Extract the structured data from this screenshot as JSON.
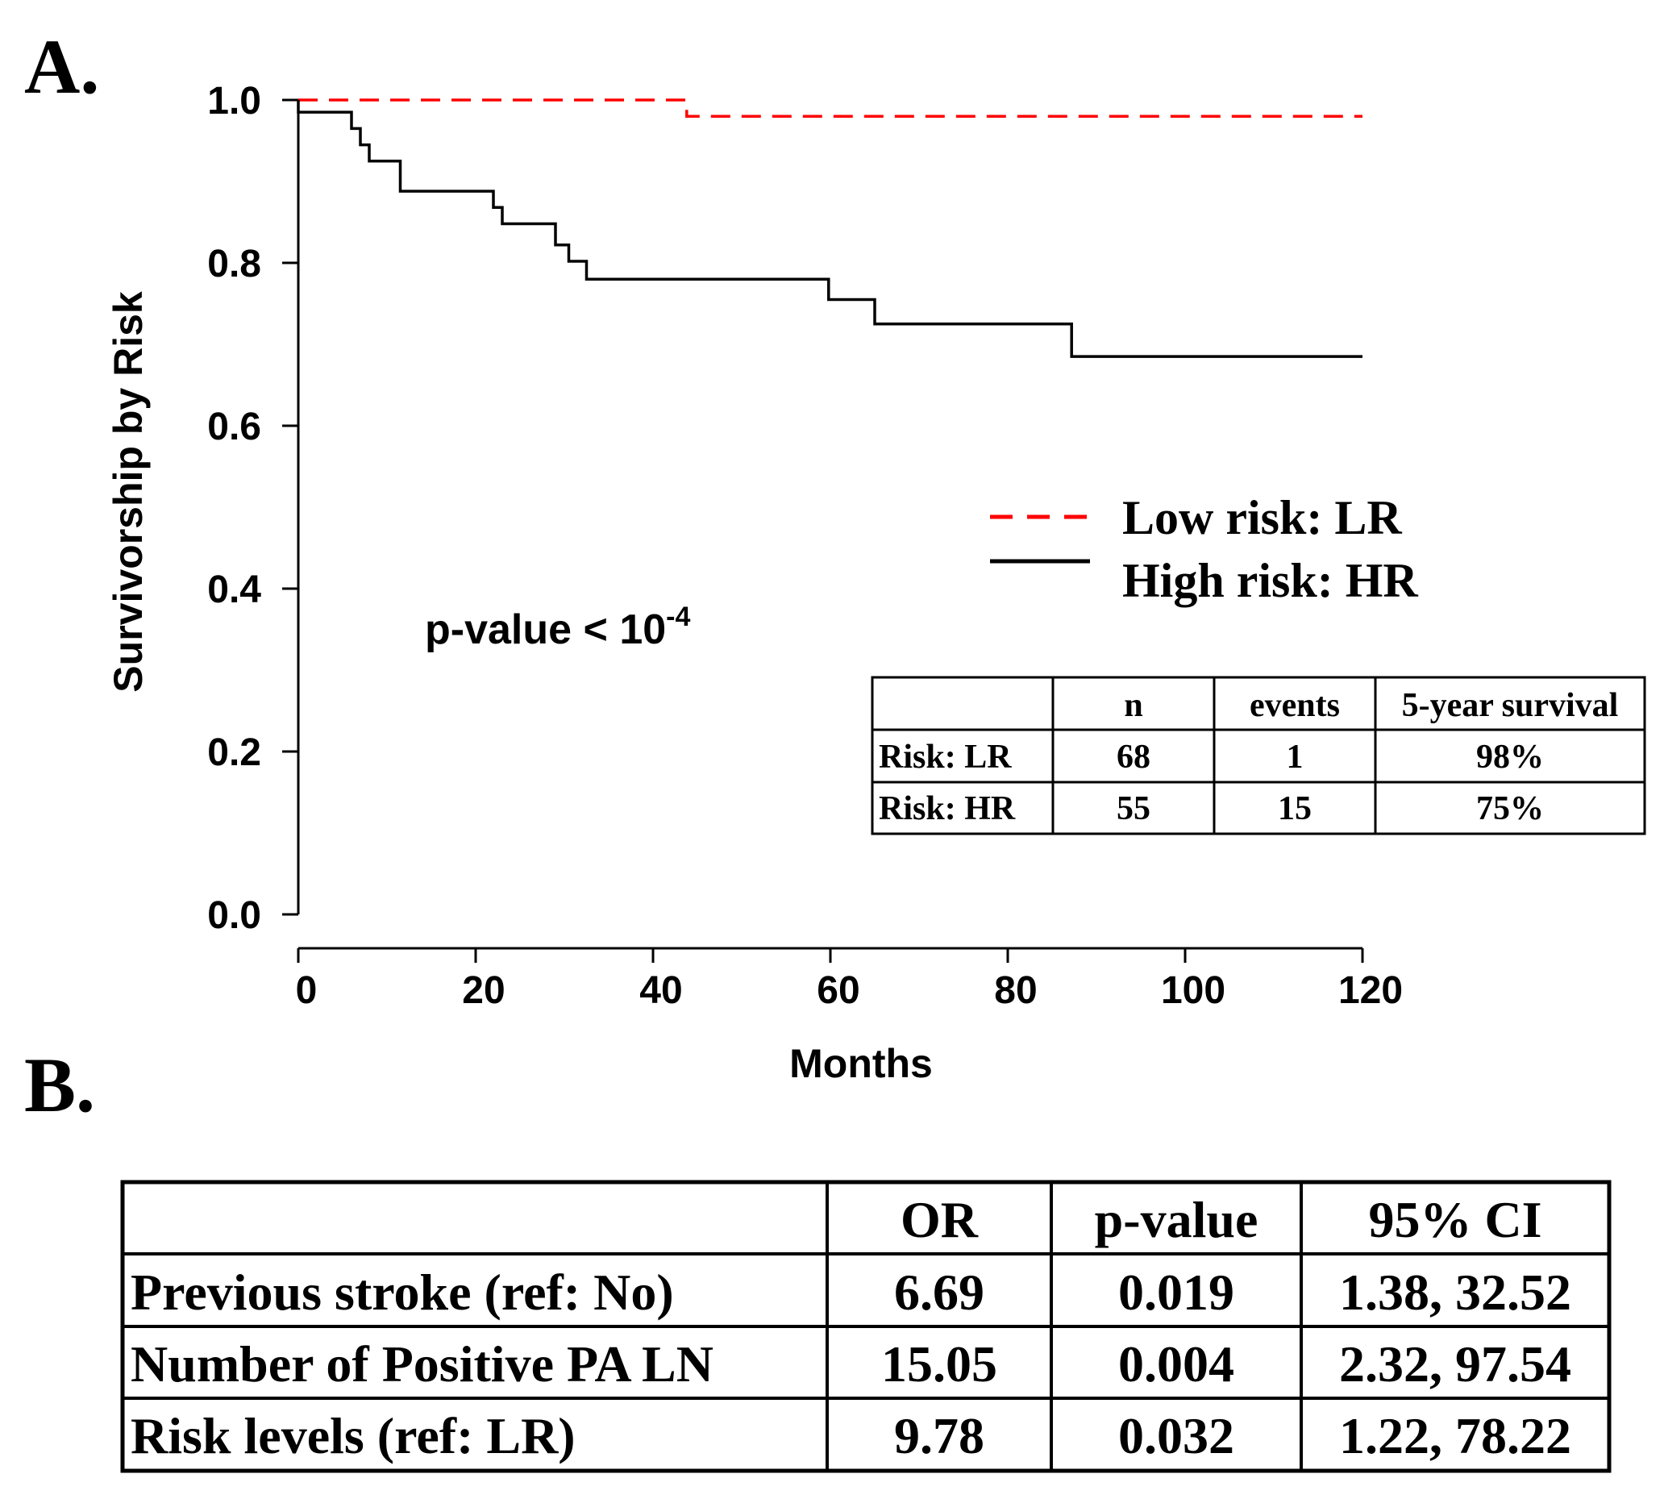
{
  "panel_a_label": "A.",
  "panel_b_label": "B.",
  "chart_data": {
    "type": "line",
    "title": "",
    "xlabel": "Months",
    "ylabel": "Survivorship by Risk",
    "xlim": [
      0,
      120
    ],
    "ylim": [
      0,
      1
    ],
    "x_ticks": [
      "0",
      "20",
      "40",
      "60",
      "80",
      "100",
      "120"
    ],
    "y_ticks": [
      "0.0",
      "0.2",
      "0.4",
      "0.6",
      "0.8",
      "1.0"
    ],
    "annotation": {
      "text": "p-value < 10",
      "superscript": "-4"
    },
    "legend": {
      "placement": "right-center"
    },
    "series": [
      {
        "name": "Low risk: LR",
        "style": "dashed",
        "color": "#ff0000",
        "x": [
          0,
          43.8,
          43.8,
          120
        ],
        "y": [
          1.0,
          1.0,
          0.98,
          0.98
        ]
      },
      {
        "name": "High risk: HR",
        "style": "solid",
        "color": "#000000",
        "x": [
          0,
          0,
          6,
          6,
          7,
          7,
          8,
          8,
          11.5,
          11.5,
          22,
          22,
          23,
          23,
          29,
          29,
          30.5,
          30.5,
          32.5,
          32.5,
          59.8,
          59.8,
          65,
          65,
          87.2,
          87.2,
          120
        ],
        "y": [
          1.0,
          0.985,
          0.985,
          0.965,
          0.965,
          0.945,
          0.945,
          0.925,
          0.925,
          0.888,
          0.888,
          0.868,
          0.868,
          0.848,
          0.848,
          0.822,
          0.822,
          0.802,
          0.802,
          0.78,
          0.78,
          0.755,
          0.755,
          0.725,
          0.725,
          0.685,
          0.685
        ]
      }
    ]
  },
  "table_a": {
    "headers": [
      "",
      "n",
      "events",
      "5-year survival"
    ],
    "rows": [
      [
        "Risk: LR",
        "68",
        "1",
        "98%"
      ],
      [
        "Risk: HR",
        "55",
        "15",
        "75%"
      ]
    ]
  },
  "table_b": {
    "headers": [
      "",
      "OR",
      "p-value",
      "95% CI"
    ],
    "rows": [
      [
        "Previous stroke (ref: No)",
        "6.69",
        "0.019",
        "1.38, 32.52"
      ],
      [
        "Number of Positive PA LN",
        "15.05",
        "0.004",
        "2.32, 97.54"
      ],
      [
        "Risk levels (ref: LR)",
        "9.78",
        "0.032",
        "1.22, 78.22"
      ]
    ]
  }
}
